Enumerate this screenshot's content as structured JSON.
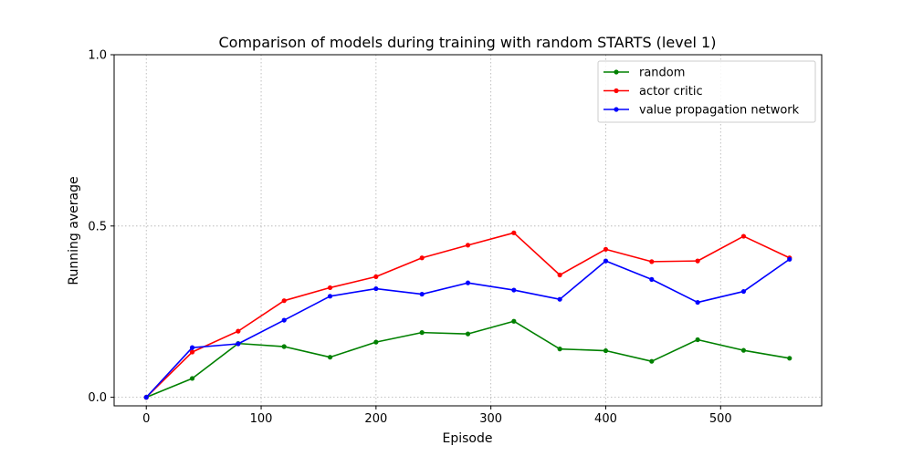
{
  "chart_data": {
    "type": "line",
    "title": "Comparison of models during training with random STARTS (level 1)",
    "xlabel": "Episode",
    "ylabel": "Running average",
    "x": [
      0,
      40,
      80,
      120,
      160,
      200,
      240,
      280,
      320,
      360,
      400,
      440,
      480,
      520,
      560
    ],
    "xlim": [
      -28,
      588
    ],
    "ylim": [
      -0.025,
      1.0
    ],
    "xticks": [
      0,
      100,
      200,
      300,
      400,
      500
    ],
    "xtick_labels": [
      "0",
      "100",
      "200",
      "300",
      "400",
      "500"
    ],
    "yticks": [
      0.0,
      0.5,
      1.0
    ],
    "ytick_labels": [
      "0.0",
      "0.5",
      "1.0"
    ],
    "grid": true,
    "legend_position": "top-right",
    "series": [
      {
        "name": "random",
        "color": "#008000",
        "values": [
          0.0,
          0.055,
          0.157,
          0.148,
          0.117,
          0.161,
          0.189,
          0.185,
          0.222,
          0.141,
          0.136,
          0.105,
          0.168,
          0.137,
          0.114
        ]
      },
      {
        "name": "actor critic",
        "color": "#ff0000",
        "values": [
          0.0,
          0.132,
          0.193,
          0.282,
          0.32,
          0.352,
          0.407,
          0.444,
          0.48,
          0.357,
          0.432,
          0.396,
          0.398,
          0.47,
          0.407
        ]
      },
      {
        "name": "value propagation network",
        "color": "#0000ff",
        "values": [
          0.0,
          0.145,
          0.156,
          0.225,
          0.295,
          0.317,
          0.301,
          0.334,
          0.313,
          0.286,
          0.398,
          0.344,
          0.277,
          0.309,
          0.403
        ]
      }
    ]
  }
}
